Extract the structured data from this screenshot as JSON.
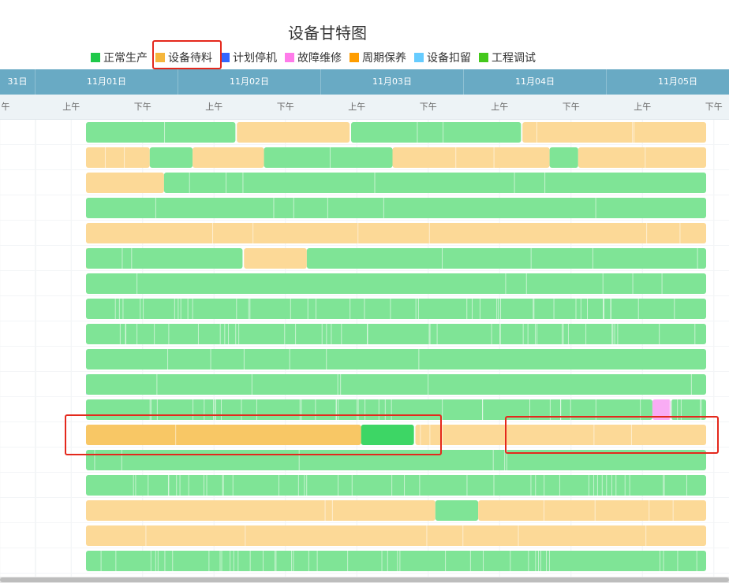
{
  "title": "设备甘特图",
  "legend": [
    {
      "label": "正常生产",
      "color": "#1fc94a"
    },
    {
      "label": "设备待料",
      "color": "#f5b63c"
    },
    {
      "label": "计划停机",
      "color": "#3366ff"
    },
    {
      "label": "故障维修",
      "color": "#ff7bea"
    },
    {
      "label": "周期保养",
      "color": "#ff9d00"
    },
    {
      "label": "设备扣留",
      "color": "#66ccff"
    },
    {
      "label": "工程调试",
      "color": "#44c81c"
    }
  ],
  "date_labels": [
    "31日",
    "11月01日",
    "11月02日",
    "11月03日",
    "11月04日",
    "11月05日"
  ],
  "half_labels": [
    "午",
    "上午",
    "下午",
    "上午",
    "下午",
    "上午",
    "下午",
    "上午",
    "下午",
    "上午",
    "下午"
  ],
  "colors": {
    "green": "#7fe496",
    "green_divider": "#2fce58",
    "orange": "#fcd997",
    "blue": "#9db4f5",
    "pink": "#f9acf4",
    "header": "#69aac4",
    "highlight": "#e4281c"
  },
  "chart_data": {
    "type": "gantt",
    "title": "设备甘特图",
    "x_unit": "days since 11月01日 00:00",
    "rows": [
      [
        {
          "s": -0.2,
          "e": 1.4,
          "st": "正常生产"
        },
        {
          "s": 1.41,
          "e": 2.2,
          "st": "设备待料"
        },
        {
          "s": 2.21,
          "e": 3.4,
          "st": "正常生产"
        },
        {
          "s": 3.41,
          "e": 4.95,
          "st": "设备待料"
        }
      ],
      [
        {
          "s": -0.2,
          "e": 0.8,
          "st": "设备待料"
        },
        {
          "s": 0.8,
          "e": 1.1,
          "st": "正常生产"
        },
        {
          "s": 1.1,
          "e": 1.6,
          "st": "设备待料"
        },
        {
          "s": 1.6,
          "e": 2.5,
          "st": "正常生产"
        },
        {
          "s": 2.5,
          "e": 3.6,
          "st": "设备待料"
        },
        {
          "s": 3.6,
          "e": 3.8,
          "st": "正常生产"
        },
        {
          "s": 3.8,
          "e": 4.95,
          "st": "设备待料"
        }
      ],
      [
        {
          "s": -0.2,
          "e": 0.9,
          "st": "设备待料"
        },
        {
          "s": 0.9,
          "e": 4.95,
          "st": "正常生产"
        }
      ],
      [
        {
          "s": -0.2,
          "e": 4.95,
          "st": "正常生产"
        }
      ],
      [
        {
          "s": -0.2,
          "e": 4.95,
          "st": "设备待料"
        }
      ],
      [
        {
          "s": -0.2,
          "e": 0.01,
          "st": "设备待料"
        },
        {
          "s": 0.01,
          "e": 1.45,
          "st": "正常生产"
        },
        {
          "s": 1.46,
          "e": 1.9,
          "st": "设备待料"
        },
        {
          "s": 1.9,
          "e": 4.95,
          "st": "正常生产"
        }
      ],
      [
        {
          "s": -0.2,
          "e": 4.95,
          "st": "正常生产"
        }
      ],
      [
        {
          "s": -0.2,
          "e": 4.95,
          "st": "正常生产"
        }
      ],
      [
        {
          "s": -0.2,
          "e": 4.95,
          "st": "正常生产"
        }
      ],
      [
        {
          "s": -0.2,
          "e": 4.95,
          "st": "正常生产"
        }
      ],
      [
        {
          "s": -0.19,
          "e": -0.1,
          "st": "计划停机"
        },
        {
          "s": -0.09,
          "e": 4.95,
          "st": "正常生产"
        }
      ],
      [
        {
          "s": -0.2,
          "e": 4.32,
          "st": "正常生产"
        },
        {
          "s": 4.32,
          "e": 4.45,
          "st": "故障维修"
        },
        {
          "s": 4.45,
          "e": 4.95,
          "st": "正常生产"
        }
      ],
      [
        {
          "s": -0.2,
          "e": 2.28,
          "st": "设备待料"
        },
        {
          "s": 2.28,
          "e": 2.65,
          "st": "正常生产"
        },
        {
          "s": 2.66,
          "e": 4.95,
          "st": "设备待料"
        }
      ],
      [
        {
          "s": -0.2,
          "e": 4.95,
          "st": "正常生产"
        }
      ],
      [
        {
          "s": -0.2,
          "e": 4.95,
          "st": "正常生产"
        }
      ],
      [
        {
          "s": -0.2,
          "e": 2.8,
          "st": "设备待料"
        },
        {
          "s": 2.8,
          "e": 3.1,
          "st": "正常生产"
        },
        {
          "s": 3.1,
          "e": 4.95,
          "st": "设备待料"
        }
      ],
      [
        {
          "s": -0.2,
          "e": 4.95,
          "st": "设备待料"
        }
      ],
      [
        {
          "s": -0.2,
          "e": 4.95,
          "st": "正常生产"
        }
      ]
    ]
  }
}
